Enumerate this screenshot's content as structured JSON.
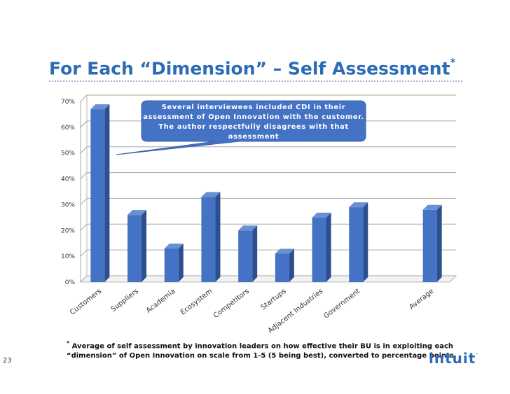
{
  "slide": {
    "title": "For Each “Dimension” – Self Assessment",
    "title_mark": "*",
    "page_number": "23",
    "logo": "intuit",
    "logo_mark": "."
  },
  "callout": {
    "text": "Several interviewees included CDI in their assessment of Open Innovation with the customer. The author respectfully disagrees with that assessment"
  },
  "footnote": {
    "mark": "*",
    "text": " Average of self assessment by innovation leaders on how effective their BU is in exploiting each “dimension” of Open Innovation on scale from 1-5 (5 being best), converted to percentage points."
  },
  "colors": {
    "bar_front": "#4472c4",
    "bar_side": "#2b4f8f",
    "bar_top": "#6a90d4",
    "title": "#2c6bb5",
    "callout": "#4472c4"
  },
  "chart_data": {
    "type": "bar",
    "categories": [
      "Customers",
      "Suppliers",
      "Academia",
      "Ecosystem",
      "Competitors",
      "Startups",
      "Adjacent Industries",
      "Government",
      "",
      "Average"
    ],
    "values": [
      67,
      26,
      13,
      33,
      20,
      11,
      25,
      29,
      null,
      28
    ],
    "yticks": [
      "0%",
      "10%",
      "20%",
      "30%",
      "40%",
      "50%",
      "60%",
      "70%"
    ],
    "ylim": [
      0,
      70
    ],
    "grid": true,
    "legend": "none"
  }
}
